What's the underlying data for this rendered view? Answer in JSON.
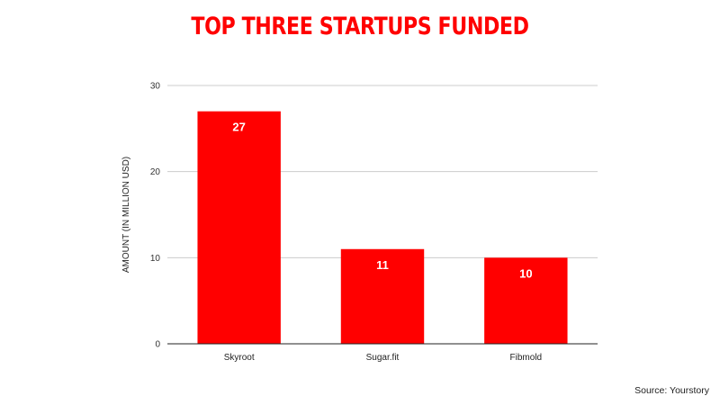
{
  "chart_data": {
    "type": "bar",
    "title": "TOP THREE STARTUPS FUNDED",
    "categories": [
      "Skyroot",
      "Sugar.fit",
      "Fibmold"
    ],
    "values": [
      27,
      11,
      10
    ],
    "data_labels": [
      "27",
      "11",
      "10"
    ],
    "xlabel": "",
    "ylabel": "AMOUNT (IN MILLION USD)",
    "ylim": [
      0,
      30
    ],
    "yticks": [
      0,
      10,
      20,
      30
    ],
    "grid": true,
    "legend": "none",
    "bar_color": "#ff0000"
  },
  "source": "Source: Yourstory"
}
